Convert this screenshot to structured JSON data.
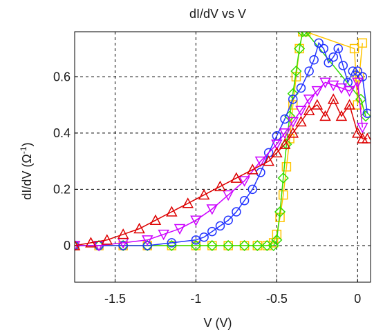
{
  "chart_data": {
    "type": "scatter",
    "title": "dI/dV vs V",
    "xlabel": "V (V)",
    "ylabel": "dI/dV (Ω⁻¹)",
    "ylabel_parts": {
      "before": "dI/dV (",
      "unit": "Ω",
      "sup": "-1",
      "after": ")"
    },
    "xlim": [
      -1.75,
      0.08
    ],
    "ylim": [
      -0.13,
      0.76
    ],
    "xticks": [
      -1.5,
      -1,
      -0.5,
      0
    ],
    "xtick_labels": [
      "-1.5",
      "-1",
      "-0.5",
      "0"
    ],
    "yticks": [
      0,
      0.2,
      0.4,
      0.6
    ],
    "ytick_labels": [
      "0",
      "0.2",
      "0.4",
      "0.6"
    ],
    "grid": true,
    "grid_style": "dashed",
    "series": [
      {
        "color": "#ffc400",
        "marker": "square",
        "x": [
          -1.75,
          -1.6,
          -1.45,
          -1.3,
          -1.15,
          -1.0,
          -0.9,
          -0.8,
          -0.7,
          -0.62,
          -0.56,
          -0.52,
          -0.5,
          -0.48,
          -0.46,
          -0.44,
          -0.42,
          -0.4,
          -0.38,
          -0.36,
          -0.34,
          -0.32,
          -0.02,
          0.0,
          0.01,
          0.03
        ],
        "y": [
          0.0,
          0.0,
          0.0,
          0.0,
          0.0,
          0.0,
          0.0,
          0.0,
          0.0,
          0.0,
          0.0,
          0.01,
          0.04,
          0.1,
          0.18,
          0.28,
          0.38,
          0.5,
          0.6,
          0.7,
          0.76,
          0.76,
          0.7,
          0.5,
          0.6,
          0.72
        ]
      },
      {
        "color": "#33dd00",
        "marker": "diamond",
        "x": [
          -1.75,
          -1.6,
          -1.45,
          -1.3,
          -1.15,
          -1.0,
          -0.9,
          -0.8,
          -0.7,
          -0.62,
          -0.56,
          -0.52,
          -0.5,
          -0.48,
          -0.46,
          -0.44,
          -0.42,
          -0.4,
          -0.38,
          -0.36,
          -0.34,
          -0.32,
          0.02,
          0.05
        ],
        "y": [
          0.0,
          0.0,
          0.0,
          0.0,
          0.0,
          0.0,
          0.0,
          0.0,
          0.0,
          0.0,
          0.0,
          0.0,
          0.02,
          0.12,
          0.24,
          0.36,
          0.46,
          0.54,
          0.62,
          0.7,
          0.76,
          0.76,
          0.52,
          0.46
        ]
      },
      {
        "color": "#2233ff",
        "marker": "circle",
        "x": [
          -1.75,
          -1.6,
          -1.45,
          -1.3,
          -1.15,
          -1.0,
          -0.95,
          -0.9,
          -0.85,
          -0.8,
          -0.75,
          -0.7,
          -0.65,
          -0.6,
          -0.55,
          -0.5,
          -0.45,
          -0.4,
          -0.35,
          -0.3,
          -0.27,
          -0.24,
          -0.21,
          -0.18,
          -0.15,
          -0.12,
          -0.09,
          -0.06,
          -0.03,
          0.0,
          0.03,
          0.06
        ],
        "y": [
          0.0,
          0.0,
          0.0,
          0.0,
          0.01,
          0.02,
          0.03,
          0.05,
          0.07,
          0.09,
          0.12,
          0.16,
          0.2,
          0.26,
          0.33,
          0.39,
          0.45,
          0.52,
          0.56,
          0.62,
          0.66,
          0.72,
          0.7,
          0.65,
          0.67,
          0.7,
          0.64,
          0.58,
          0.62,
          0.62,
          0.6,
          0.47
        ]
      },
      {
        "color": "#cc00ff",
        "marker": "triangle-down",
        "x": [
          -1.75,
          -1.6,
          -1.45,
          -1.3,
          -1.2,
          -1.1,
          -1.0,
          -0.9,
          -0.8,
          -0.7,
          -0.6,
          -0.5,
          -0.45,
          -0.4,
          -0.35,
          -0.3,
          -0.25,
          -0.2,
          -0.15,
          -0.1,
          -0.05,
          0.0,
          0.03
        ],
        "y": [
          0.0,
          0.0,
          0.01,
          0.02,
          0.04,
          0.06,
          0.09,
          0.13,
          0.18,
          0.23,
          0.3,
          0.36,
          0.4,
          0.44,
          0.48,
          0.52,
          0.55,
          0.58,
          0.57,
          0.56,
          0.55,
          0.58,
          0.42
        ]
      },
      {
        "color": "#dd0000",
        "marker": "triangle-up",
        "x": [
          -1.75,
          -1.65,
          -1.55,
          -1.45,
          -1.35,
          -1.25,
          -1.15,
          -1.05,
          -0.95,
          -0.85,
          -0.75,
          -0.65,
          -0.55,
          -0.5,
          -0.45,
          -0.4,
          -0.35,
          -0.3,
          -0.25,
          -0.2,
          -0.15,
          -0.1,
          -0.05,
          0.0,
          0.03,
          0.06
        ],
        "y": [
          0.0,
          0.01,
          0.02,
          0.04,
          0.06,
          0.09,
          0.12,
          0.15,
          0.18,
          0.21,
          0.24,
          0.27,
          0.3,
          0.33,
          0.36,
          0.4,
          0.44,
          0.48,
          0.5,
          0.46,
          0.52,
          0.46,
          0.5,
          0.4,
          0.38,
          0.38
        ]
      }
    ]
  }
}
